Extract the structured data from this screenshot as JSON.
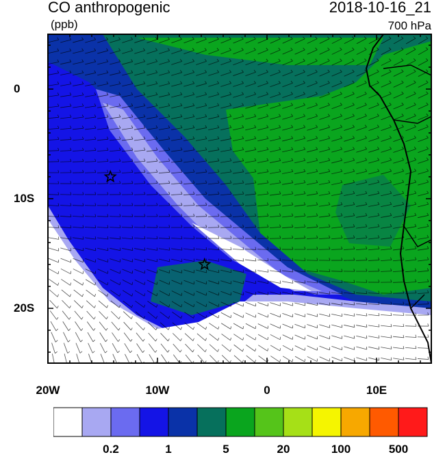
{
  "header": {
    "title": "CO anthropogenic",
    "units": "(ppb)",
    "timestamp": "2018-10-16_21",
    "level": "700 hPa"
  },
  "map": {
    "lon_range": [
      -20,
      15
    ],
    "lat_range": [
      -25,
      5
    ],
    "lon_ticks": [
      "20W",
      "10W",
      "0",
      "10E"
    ],
    "lat_ticks": [
      "0",
      "10S",
      "20S"
    ],
    "markers": [
      {
        "name": "star",
        "lon": -14.3,
        "lat": -8.0
      },
      {
        "name": "star",
        "lon": -5.7,
        "lat": -16.0
      }
    ]
  },
  "colorbar": {
    "colors": [
      "#ffffff",
      "#a8a8f2",
      "#6b6bf0",
      "#1414e6",
      "#0a32a8",
      "#06705c",
      "#0aa51e",
      "#55c41a",
      "#a6e017",
      "#f5f500",
      "#f7a800",
      "#ff5a00",
      "#ff1a1a"
    ],
    "labels": [
      "0.2",
      "1",
      "5",
      "20",
      "100",
      "500"
    ]
  }
}
